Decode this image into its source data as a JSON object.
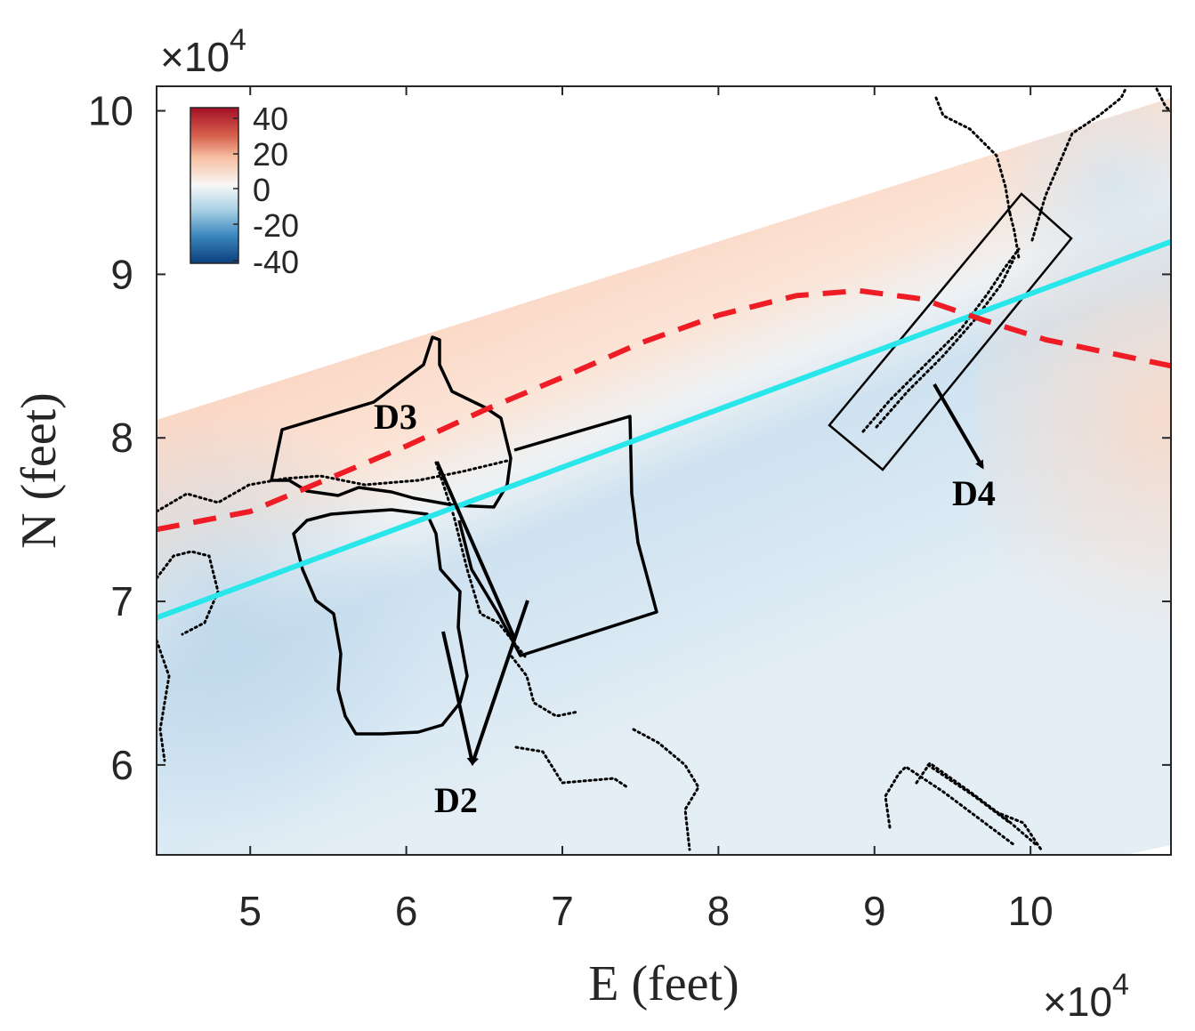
{
  "chart_data": {
    "type": "heatmap",
    "xlabel": "E (feet)",
    "ylabel": "N (feet)",
    "x_multiplier": "×10",
    "x_multiplier_exp": "4",
    "y_multiplier": "×10",
    "y_multiplier_exp": "4",
    "xlim": [
      4.4,
      10.9
    ],
    "ylim": [
      5.45,
      10.15
    ],
    "x_ticks": [
      5,
      6,
      7,
      8,
      9,
      10
    ],
    "x_tick_labels": [
      "5",
      "6",
      "7",
      "8",
      "9",
      "10"
    ],
    "y_ticks": [
      6,
      7,
      8,
      9,
      10
    ],
    "y_tick_labels": [
      "6",
      "7",
      "8",
      "9",
      "10"
    ],
    "colorbar": {
      "ticks": [
        40,
        20,
        0,
        -20,
        -40
      ],
      "tick_labels": [
        "40",
        "20",
        "0",
        "-20",
        "-40"
      ],
      "colormap": "red-white-blue",
      "high_color": "#a50f26",
      "mid_color": "#f7f7f7",
      "low_color": "#0b3f7e"
    },
    "lines": {
      "cyan_line": {
        "color": "#29e6ea",
        "x": [
          4.4,
          10.9
        ],
        "y": [
          6.9,
          9.2
        ]
      },
      "red_dashed": {
        "color": "#ee1c25",
        "x": [
          4.4,
          5.0,
          5.5,
          6.0,
          6.5,
          7.0,
          7.5,
          8.0,
          8.5,
          8.9,
          9.3,
          9.7,
          10.1,
          10.5,
          10.9
        ],
        "y": [
          7.44,
          7.55,
          7.75,
          7.95,
          8.17,
          8.37,
          8.58,
          8.75,
          8.87,
          8.9,
          8.85,
          8.72,
          8.6,
          8.52,
          8.44
        ]
      }
    },
    "regions": [
      {
        "label": "D2",
        "arrow_from": [
          6.21,
          6.72
        ],
        "arrow_to": [
          6.45,
          5.97
        ],
        "label_at": [
          6.37,
          5.75
        ]
      },
      {
        "label": "D3",
        "label_at": [
          5.98,
          8.12
        ]
      },
      {
        "label": "D4",
        "arrow_from": [
          9.42,
          8.42
        ],
        "arrow_to": [
          9.73,
          7.82
        ],
        "label_at": [
          9.67,
          7.63
        ]
      }
    ]
  }
}
